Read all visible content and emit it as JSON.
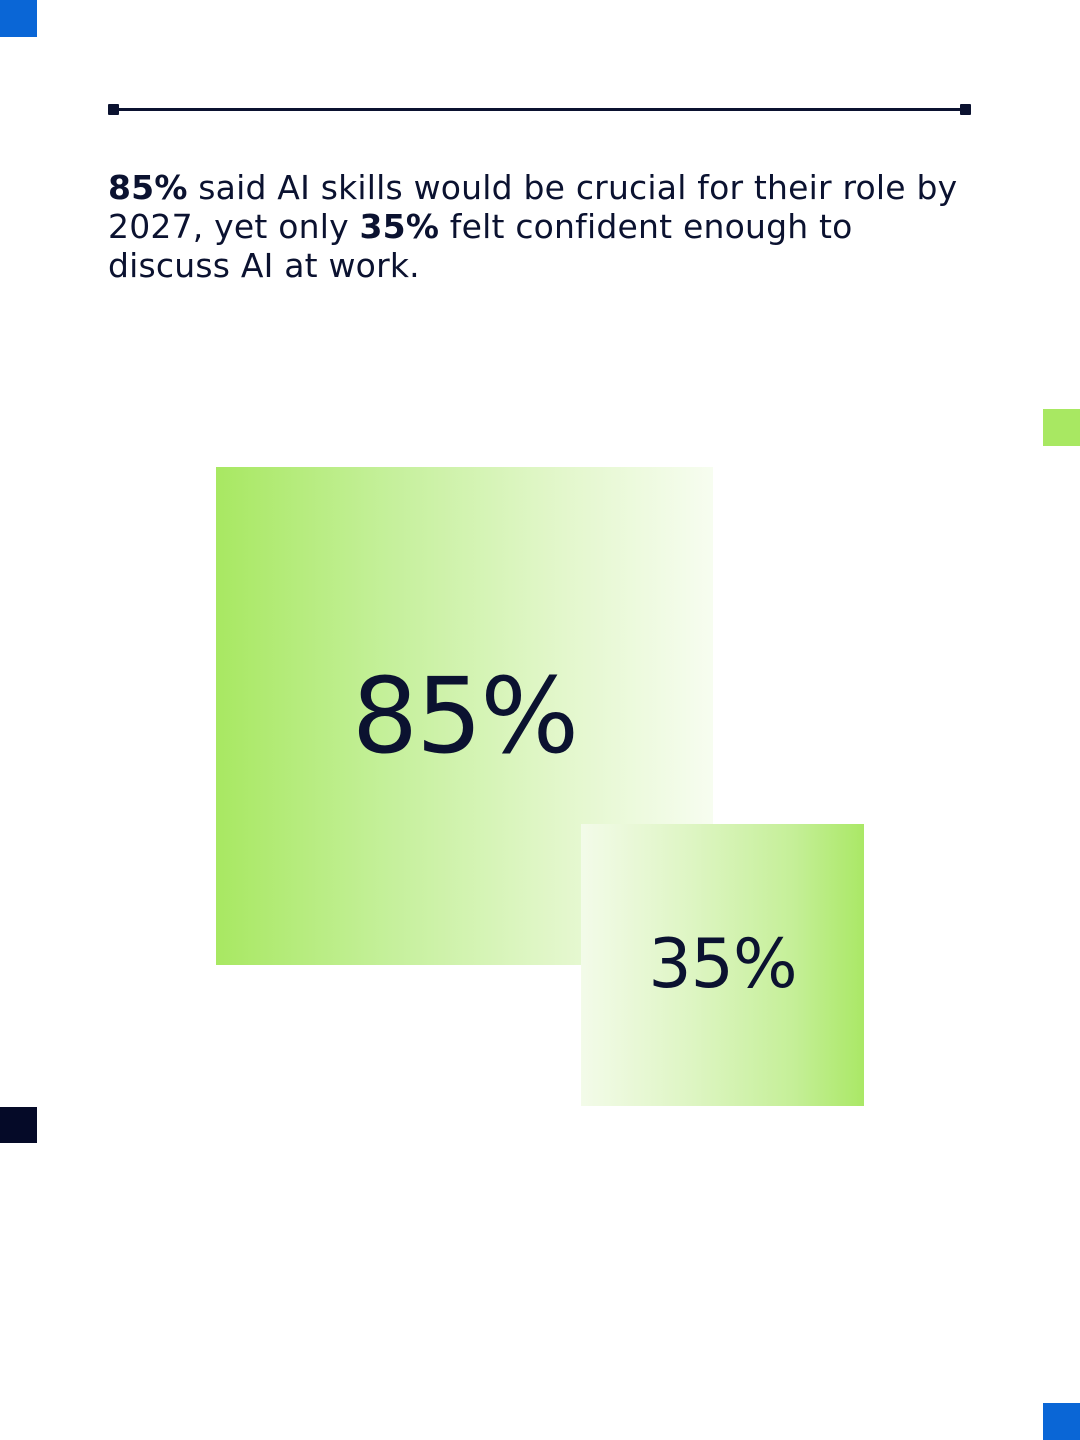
{
  "statement": {
    "stat_1": "85%",
    "text_1": " said AI skills would be crucial for their role by 2027, yet only ",
    "stat_2": "35%",
    "text_2": " felt confident enough to discuss AI at work."
  },
  "visual": {
    "large_box_value": "85%",
    "small_box_value": "35%"
  },
  "colors": {
    "accent_green": "#a8e862",
    "accent_blue": "#0a66d6",
    "text_navy": "#0b1230"
  }
}
